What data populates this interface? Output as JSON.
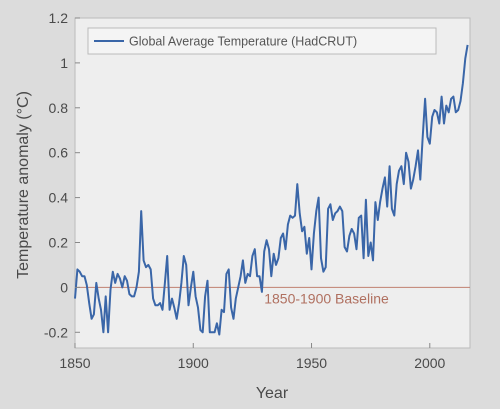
{
  "chart_data": {
    "type": "line",
    "xlabel": "Year",
    "ylabel": "Temperature anomaly (°C)",
    "xlim": [
      1850,
      2017
    ],
    "ylim": [
      -0.27,
      1.2
    ],
    "xticks": [
      1850,
      1900,
      1950,
      2000
    ],
    "yticks": [
      -0.2,
      0,
      0.2,
      0.4,
      0.6,
      0.8,
      1,
      1.2
    ],
    "xtick_labels": [
      "1850",
      "1900",
      "1950",
      "2000"
    ],
    "ytick_labels": [
      "-0.2",
      "0",
      "0.2",
      "0.4",
      "0.6",
      "0.8",
      "1",
      "1.2"
    ],
    "grid": false,
    "legend_position": "top-right",
    "baseline": {
      "value": 0,
      "label": "1850-1900 Baseline",
      "color": "#c08070"
    },
    "series": [
      {
        "name": "Global Average Temperature (HadCRUT)",
        "color": "#3a66a8",
        "x": [
          1850,
          1851,
          1852,
          1853,
          1854,
          1855,
          1856,
          1857,
          1858,
          1859,
          1860,
          1861,
          1862,
          1863,
          1864,
          1865,
          1866,
          1867,
          1868,
          1869,
          1870,
          1871,
          1872,
          1873,
          1874,
          1875,
          1876,
          1877,
          1878,
          1879,
          1880,
          1881,
          1882,
          1883,
          1884,
          1885,
          1886,
          1887,
          1888,
          1889,
          1890,
          1891,
          1892,
          1893,
          1894,
          1895,
          1896,
          1897,
          1898,
          1899,
          1900,
          1901,
          1902,
          1903,
          1904,
          1905,
          1906,
          1907,
          1908,
          1909,
          1910,
          1911,
          1912,
          1913,
          1914,
          1915,
          1916,
          1917,
          1918,
          1919,
          1920,
          1921,
          1922,
          1923,
          1924,
          1925,
          1926,
          1927,
          1928,
          1929,
          1930,
          1931,
          1932,
          1933,
          1934,
          1935,
          1936,
          1937,
          1938,
          1939,
          1940,
          1941,
          1942,
          1943,
          1944,
          1945,
          1946,
          1947,
          1948,
          1949,
          1950,
          1951,
          1952,
          1953,
          1954,
          1955,
          1956,
          1957,
          1958,
          1959,
          1960,
          1961,
          1962,
          1963,
          1964,
          1965,
          1966,
          1967,
          1968,
          1969,
          1970,
          1971,
          1972,
          1973,
          1974,
          1975,
          1976,
          1977,
          1978,
          1979,
          1980,
          1981,
          1982,
          1983,
          1984,
          1985,
          1986,
          1987,
          1988,
          1989,
          1990,
          1991,
          1992,
          1993,
          1994,
          1995,
          1996,
          1997,
          1998,
          1999,
          2000,
          2001,
          2002,
          2003,
          2004,
          2005,
          2006,
          2007,
          2008,
          2009,
          2010,
          2011,
          2012,
          2013,
          2014,
          2015,
          2016
        ],
        "y": [
          -0.05,
          0.08,
          0.07,
          0.05,
          0.05,
          0.01,
          -0.07,
          -0.14,
          -0.12,
          0.02,
          -0.05,
          -0.1,
          -0.2,
          -0.04,
          -0.2,
          -0.01,
          0.07,
          0.02,
          0.06,
          0.04,
          0,
          0.05,
          0.03,
          -0.03,
          -0.04,
          -0.04,
          0.0,
          0.07,
          0.34,
          0.12,
          0.09,
          0.1,
          0.08,
          -0.05,
          -0.08,
          -0.08,
          -0.07,
          -0.1,
          0.02,
          0.14,
          -0.1,
          -0.05,
          -0.09,
          -0.14,
          -0.07,
          0.02,
          0.14,
          0.1,
          -0.08,
          0.0,
          0.07,
          -0.04,
          -0.09,
          -0.19,
          -0.2,
          -0.04,
          0.03,
          -0.2,
          -0.2,
          -0.2,
          -0.16,
          -0.21,
          -0.1,
          -0.11,
          0.06,
          0.08,
          -0.09,
          -0.14,
          -0.05,
          0.0,
          0.05,
          0.12,
          0.02,
          0.06,
          0.05,
          0.14,
          0.17,
          0.05,
          0.05,
          -0.02,
          0.16,
          0.21,
          0.17,
          0.05,
          0.15,
          0.1,
          0.13,
          0.22,
          0.24,
          0.17,
          0.28,
          0.32,
          0.31,
          0.32,
          0.46,
          0.33,
          0.25,
          0.27,
          0.15,
          0.22,
          0.08,
          0.24,
          0.34,
          0.4,
          0.13,
          0.07,
          0.09,
          0.35,
          0.37,
          0.3,
          0.33,
          0.34,
          0.36,
          0.34,
          0.18,
          0.16,
          0.23,
          0.26,
          0.24,
          0.17,
          0.31,
          0.32,
          0.13,
          0.39,
          0.14,
          0.2,
          0.12,
          0.38,
          0.3,
          0.38,
          0.44,
          0.49,
          0.36,
          0.54,
          0.35,
          0.32,
          0.46,
          0.52,
          0.54,
          0.46,
          0.6,
          0.56,
          0.44,
          0.48,
          0.54,
          0.61,
          0.48,
          0.67,
          0.84,
          0.67,
          0.64,
          0.76,
          0.79,
          0.78,
          0.73,
          0.85,
          0.73,
          0.81,
          0.78,
          0.84,
          0.85,
          0.78,
          0.79,
          0.83,
          0.91,
          1.02,
          1.08
        ]
      }
    ]
  }
}
